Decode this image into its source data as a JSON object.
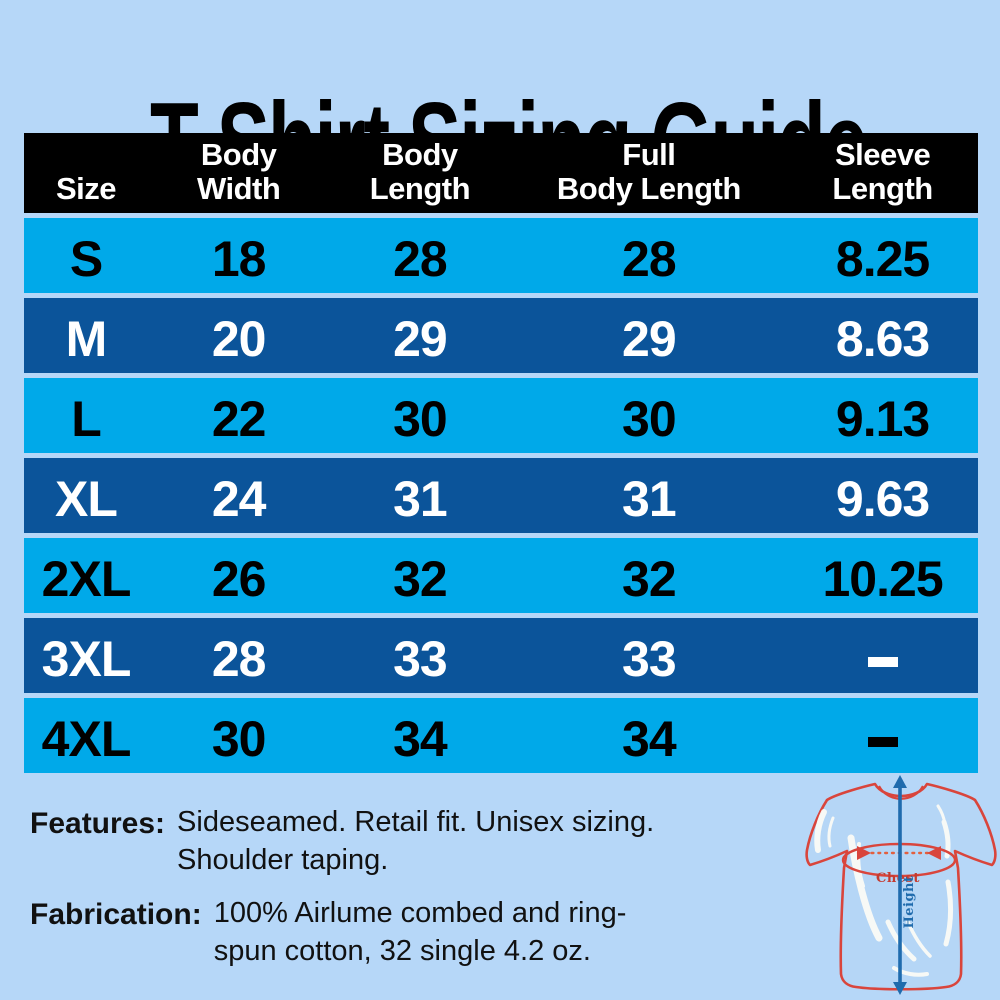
{
  "title": "T-Shirt Sizing Guide",
  "colors": {
    "background": "#b6d7f8",
    "row_light": "#00a9e9",
    "row_dark": "#0b549a",
    "header_bg": "#000000",
    "header_text": "#ffffff",
    "shirt_red": "#d9453c",
    "dotted_orange": "#e2603f",
    "arrow_blue": "#1f6bad"
  },
  "table": {
    "headers": [
      "Size",
      "Body\nWidth",
      "Body\nLength",
      "Full\nBody Length",
      "Sleeve\nLength"
    ],
    "rows": [
      {
        "cells": [
          "S",
          "18",
          "28",
          "28",
          "8.25"
        ]
      },
      {
        "cells": [
          "M",
          "20",
          "29",
          "29",
          "8.63"
        ]
      },
      {
        "cells": [
          "L",
          "22",
          "30",
          "30",
          "9.13"
        ]
      },
      {
        "cells": [
          "XL",
          "24",
          "31",
          "31",
          "9.63"
        ]
      },
      {
        "cells": [
          "2XL",
          "26",
          "32",
          "32",
          "10.25"
        ]
      },
      {
        "cells": [
          "3XL",
          "28",
          "33",
          "33",
          "–"
        ]
      },
      {
        "cells": [
          "4XL",
          "30",
          "34",
          "34",
          "–"
        ]
      }
    ]
  },
  "notes": {
    "features_label": "Features:",
    "features_text": "Sideseamed. Retail fit. Unisex sizing.\nShoulder taping.",
    "fabrication_label": "Fabrication:",
    "fabrication_text": "100% Airlume combed and ring-\nspun cotton, 32 single 4.2 oz."
  },
  "diagram": {
    "chest_label": "Chest",
    "height_label": "Height"
  }
}
